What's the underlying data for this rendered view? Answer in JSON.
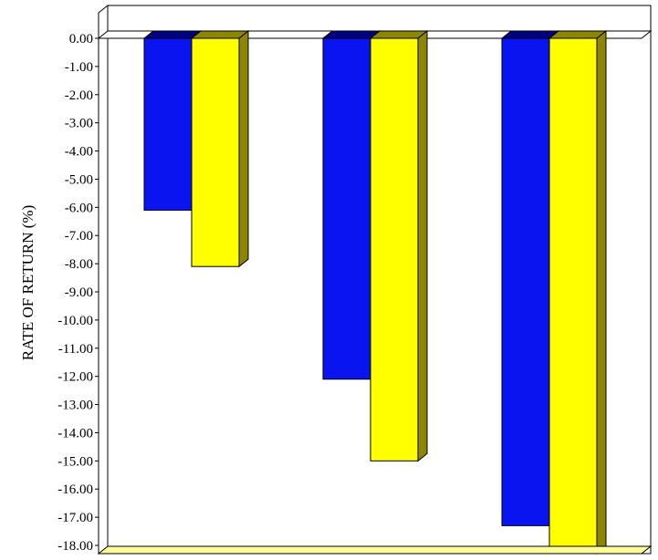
{
  "chart_data": {
    "type": "bar",
    "ylabel": "RATE OF RETURN (%)",
    "ylim": [
      -18,
      0
    ],
    "yticks": [
      "0.00",
      "-1.00",
      "-2.00",
      "-3.00",
      "-4.00",
      "-5.00",
      "-6.00",
      "-7.00",
      "-8.00",
      "-9.00",
      "-10.00",
      "-11.00",
      "-12.00",
      "-13.00",
      "-14.00",
      "-15.00",
      "-16.00",
      "-17.00",
      "-18.00"
    ],
    "grid": false,
    "legend": "none",
    "categories": [
      "",
      "",
      ""
    ],
    "series": [
      {
        "values": [
          -6.1,
          -12.1,
          -17.3
        ],
        "color": "#0a14f0",
        "side_color": "#000080"
      },
      {
        "values": [
          -8.1,
          -15.0,
          -18.5
        ],
        "color": "#ffff00",
        "side_color": "#8c8600"
      }
    ],
    "floor_color": "#ffff99"
  }
}
